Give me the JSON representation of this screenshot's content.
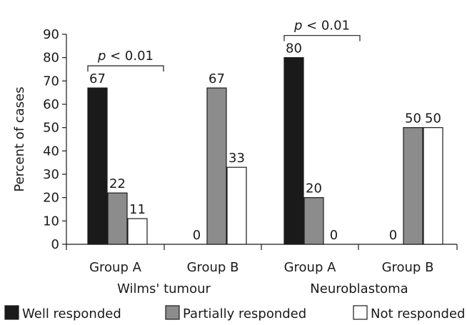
{
  "chart_data": {
    "type": "bar",
    "ylabel": "Percent of cases",
    "ylim": [
      0,
      90
    ],
    "yticks": [
      "0",
      "10",
      "20",
      "30",
      "40",
      "50",
      "60",
      "70",
      "80",
      "90"
    ],
    "groups": [
      {
        "name": "Wilms' tumour",
        "categories": [
          {
            "name": "Group A",
            "values": [
              67,
              22,
              11
            ],
            "labels": [
              "67",
              "22",
              "11"
            ],
            "significance": {
              "p": "p",
              "text": " < 0.01"
            }
          },
          {
            "name": "Group B",
            "values": [
              0,
              67,
              33
            ],
            "labels": [
              "0",
              "67",
              "33"
            ]
          }
        ]
      },
      {
        "name": "Neuroblastoma",
        "categories": [
          {
            "name": "Group A",
            "values": [
              80,
              20,
              0
            ],
            "labels": [
              "80",
              "20",
              "0"
            ],
            "significance": {
              "p": "p",
              "text": " < 0.01"
            }
          },
          {
            "name": "Group B",
            "values": [
              0,
              50,
              50
            ],
            "labels": [
              "0",
              "50",
              "50"
            ]
          }
        ]
      }
    ],
    "series": [
      {
        "name": "Well responded",
        "color": "#1a1a1a"
      },
      {
        "name": "Partially responded",
        "color": "#8c8c8c"
      },
      {
        "name": "Not responded",
        "color": "#ffffff"
      }
    ],
    "grid": false,
    "legend": "bottom"
  }
}
